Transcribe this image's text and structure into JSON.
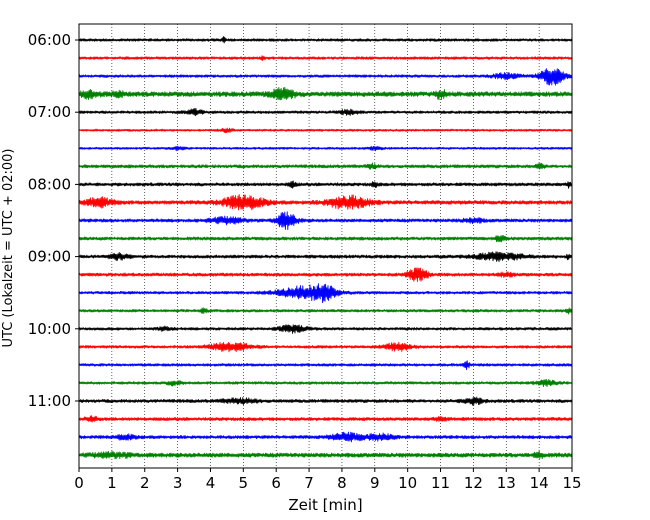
{
  "chart_data": {
    "type": "line",
    "title": "",
    "xlabel": "Zeit  [min]",
    "ylabel": "UTC (Lokalzeit = UTC + 02:00)",
    "xlim": [
      0,
      15
    ],
    "x_ticks": [
      0,
      1,
      2,
      3,
      4,
      5,
      6,
      7,
      8,
      9,
      10,
      11,
      12,
      13,
      14,
      15
    ],
    "y_ticks": [
      {
        "trace": 0,
        "label": "06:00"
      },
      {
        "trace": 4,
        "label": "07:00"
      },
      {
        "trace": 8,
        "label": "08:00"
      },
      {
        "trace": 12,
        "label": "09:00"
      },
      {
        "trace": 16,
        "label": "10:00"
      },
      {
        "trace": 20,
        "label": "11:00"
      }
    ],
    "grid": "vertical-dotted",
    "legend": "none",
    "color_cycle": [
      "#000000",
      "#ff0000",
      "#0000ff",
      "#008000"
    ],
    "series": [
      {
        "start": "06:00",
        "color": "#000000",
        "base_amp": 0.25,
        "events": [
          {
            "t": 4.4,
            "amp": 0.5,
            "width": 0.05
          }
        ]
      },
      {
        "start": "06:15",
        "color": "#ff0000",
        "base_amp": 0.25,
        "events": [
          {
            "t": 5.6,
            "amp": 0.4,
            "width": 0.05
          }
        ]
      },
      {
        "start": "06:30",
        "color": "#0000ff",
        "base_amp": 0.25,
        "events": [
          {
            "t": 14.4,
            "amp": 1.6,
            "width": 0.35
          },
          {
            "t": 13.0,
            "amp": 0.5,
            "width": 0.4
          }
        ]
      },
      {
        "start": "06:45",
        "color": "#008000",
        "base_amp": 0.45,
        "events": [
          {
            "t": 0.3,
            "amp": 0.6,
            "width": 0.3
          },
          {
            "t": 1.2,
            "amp": 0.4,
            "width": 0.2
          },
          {
            "t": 6.2,
            "amp": 1.0,
            "width": 0.35
          },
          {
            "t": 11.0,
            "amp": 0.8,
            "width": 0.15
          }
        ]
      },
      {
        "start": "07:00",
        "color": "#000000",
        "base_amp": 0.25,
        "events": [
          {
            "t": 3.5,
            "amp": 0.5,
            "width": 0.25
          },
          {
            "t": 8.2,
            "amp": 0.4,
            "width": 0.3
          }
        ]
      },
      {
        "start": "07:15",
        "color": "#ff0000",
        "base_amp": 0.2,
        "events": [
          {
            "t": 4.5,
            "amp": 0.3,
            "width": 0.2
          }
        ]
      },
      {
        "start": "07:30",
        "color": "#0000ff",
        "base_amp": 0.2,
        "events": [
          {
            "t": 3.0,
            "amp": 0.3,
            "width": 0.2
          },
          {
            "t": 9.0,
            "amp": 0.3,
            "width": 0.2
          }
        ]
      },
      {
        "start": "07:45",
        "color": "#008000",
        "base_amp": 0.3,
        "events": [
          {
            "t": 8.9,
            "amp": 0.4,
            "width": 0.15
          },
          {
            "t": 14.0,
            "amp": 0.4,
            "width": 0.15
          }
        ]
      },
      {
        "start": "08:00",
        "color": "#000000",
        "base_amp": 0.3,
        "events": [
          {
            "t": 6.5,
            "amp": 0.5,
            "width": 0.1
          },
          {
            "t": 9.0,
            "amp": 0.4,
            "width": 0.1
          },
          {
            "t": 14.9,
            "amp": 0.6,
            "width": 0.05
          }
        ]
      },
      {
        "start": "08:15",
        "color": "#ff0000",
        "base_amp": 0.35,
        "events": [
          {
            "t": 0.6,
            "amp": 0.8,
            "width": 0.4
          },
          {
            "t": 5.0,
            "amp": 1.3,
            "width": 0.6
          },
          {
            "t": 8.2,
            "amp": 1.2,
            "width": 0.6
          }
        ]
      },
      {
        "start": "08:30",
        "color": "#0000ff",
        "base_amp": 0.3,
        "events": [
          {
            "t": 4.5,
            "amp": 0.6,
            "width": 0.5
          },
          {
            "t": 6.3,
            "amp": 1.5,
            "width": 0.3
          },
          {
            "t": 12.0,
            "amp": 0.4,
            "width": 0.3
          }
        ]
      },
      {
        "start": "08:45",
        "color": "#008000",
        "base_amp": 0.3,
        "events": [
          {
            "t": 12.8,
            "amp": 0.5,
            "width": 0.15
          }
        ]
      },
      {
        "start": "09:00",
        "color": "#000000",
        "base_amp": 0.3,
        "events": [
          {
            "t": 1.2,
            "amp": 0.5,
            "width": 0.3
          },
          {
            "t": 12.8,
            "amp": 0.7,
            "width": 0.7
          },
          {
            "t": 14.9,
            "amp": 0.6,
            "width": 0.05
          }
        ]
      },
      {
        "start": "09:15",
        "color": "#ff0000",
        "base_amp": 0.3,
        "events": [
          {
            "t": 10.3,
            "amp": 1.2,
            "width": 0.3
          },
          {
            "t": 13.0,
            "amp": 0.4,
            "width": 0.2
          }
        ]
      },
      {
        "start": "09:30",
        "color": "#0000ff",
        "base_amp": 0.25,
        "events": [
          {
            "t": 6.9,
            "amp": 1.2,
            "width": 0.8
          },
          {
            "t": 7.5,
            "amp": 1.0,
            "width": 0.3
          }
        ]
      },
      {
        "start": "09:45",
        "color": "#008000",
        "base_amp": 0.25,
        "events": [
          {
            "t": 3.8,
            "amp": 0.4,
            "width": 0.1
          },
          {
            "t": 14.9,
            "amp": 0.4,
            "width": 0.1
          }
        ]
      },
      {
        "start": "10:00",
        "color": "#000000",
        "base_amp": 0.25,
        "events": [
          {
            "t": 6.5,
            "amp": 0.7,
            "width": 0.4
          },
          {
            "t": 2.6,
            "amp": 0.3,
            "width": 0.2
          }
        ]
      },
      {
        "start": "10:15",
        "color": "#ff0000",
        "base_amp": 0.25,
        "events": [
          {
            "t": 4.6,
            "amp": 0.8,
            "width": 0.6
          },
          {
            "t": 9.7,
            "amp": 0.7,
            "width": 0.4
          }
        ]
      },
      {
        "start": "10:30",
        "color": "#0000ff",
        "base_amp": 0.25,
        "events": [
          {
            "t": 11.8,
            "amp": 0.7,
            "width": 0.08
          }
        ]
      },
      {
        "start": "10:45",
        "color": "#008000",
        "base_amp": 0.25,
        "events": [
          {
            "t": 2.9,
            "amp": 0.4,
            "width": 0.2
          },
          {
            "t": 14.2,
            "amp": 0.5,
            "width": 0.3
          }
        ]
      },
      {
        "start": "11:00",
        "color": "#000000",
        "base_amp": 0.3,
        "events": [
          {
            "t": 4.9,
            "amp": 0.4,
            "width": 0.5
          },
          {
            "t": 12.0,
            "amp": 0.6,
            "width": 0.3
          }
        ]
      },
      {
        "start": "11:15",
        "color": "#ff0000",
        "base_amp": 0.3,
        "events": [
          {
            "t": 0.4,
            "amp": 0.4,
            "width": 0.2
          },
          {
            "t": 11.0,
            "amp": 0.3,
            "width": 0.2
          }
        ]
      },
      {
        "start": "11:30",
        "color": "#0000ff",
        "base_amp": 0.3,
        "events": [
          {
            "t": 1.4,
            "amp": 0.4,
            "width": 0.3
          },
          {
            "t": 8.2,
            "amp": 0.7,
            "width": 0.5
          },
          {
            "t": 9.2,
            "amp": 0.5,
            "width": 0.4
          }
        ]
      },
      {
        "start": "11:45",
        "color": "#008000",
        "base_amp": 0.4,
        "events": [
          {
            "t": 1.0,
            "amp": 0.4,
            "width": 0.6
          },
          {
            "t": 14.0,
            "amp": 0.5,
            "width": 0.15
          }
        ]
      }
    ]
  }
}
